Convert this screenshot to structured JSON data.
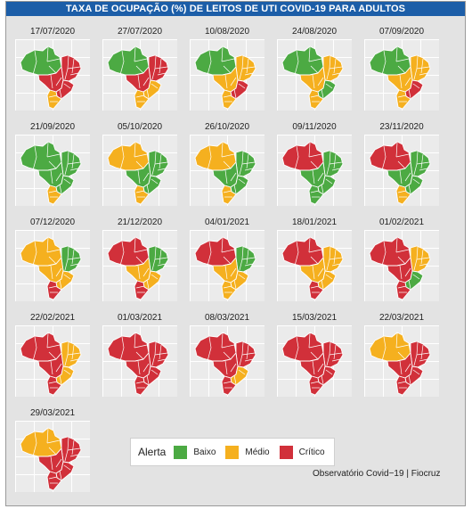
{
  "title": "TAXA DE OCUPAÇÃO (%) DE LEITOS DE UTI COVID-19 PARA ADULTOS",
  "colors": {
    "baixo": "#4caa43",
    "medio": "#f5b01f",
    "critico": "#d1303a"
  },
  "region_codes": [
    "N",
    "NE",
    "CO",
    "SE",
    "S"
  ],
  "maps": [
    {
      "date": "17/07/2020",
      "regions": [
        "baixo",
        "critico",
        "critico",
        "critico",
        "medio"
      ]
    },
    {
      "date": "27/07/2020",
      "regions": [
        "baixo",
        "critico",
        "critico",
        "medio",
        "medio"
      ]
    },
    {
      "date": "10/08/2020",
      "regions": [
        "baixo",
        "medio",
        "medio",
        "critico",
        "medio"
      ]
    },
    {
      "date": "24/08/2020",
      "regions": [
        "baixo",
        "medio",
        "medio",
        "baixo",
        "medio"
      ]
    },
    {
      "date": "07/09/2020",
      "regions": [
        "baixo",
        "medio",
        "medio",
        "critico",
        "medio"
      ]
    },
    {
      "date": "21/09/2020",
      "regions": [
        "baixo",
        "baixo",
        "baixo",
        "baixo",
        "medio"
      ]
    },
    {
      "date": "05/10/2020",
      "regions": [
        "medio",
        "baixo",
        "baixo",
        "baixo",
        "medio"
      ]
    },
    {
      "date": "26/10/2020",
      "regions": [
        "medio",
        "baixo",
        "baixo",
        "baixo",
        "medio"
      ]
    },
    {
      "date": "09/11/2020",
      "regions": [
        "critico",
        "baixo",
        "baixo",
        "baixo",
        "baixo"
      ]
    },
    {
      "date": "23/11/2020",
      "regions": [
        "critico",
        "baixo",
        "baixo",
        "baixo",
        "medio"
      ]
    },
    {
      "date": "07/12/2020",
      "regions": [
        "medio",
        "baixo",
        "medio",
        "medio",
        "critico"
      ]
    },
    {
      "date": "21/12/2020",
      "regions": [
        "critico",
        "baixo",
        "medio",
        "medio",
        "critico"
      ]
    },
    {
      "date": "04/01/2021",
      "regions": [
        "critico",
        "baixo",
        "medio",
        "medio",
        "medio"
      ]
    },
    {
      "date": "18/01/2021",
      "regions": [
        "critico",
        "medio",
        "medio",
        "medio",
        "critico"
      ]
    },
    {
      "date": "01/02/2021",
      "regions": [
        "critico",
        "medio",
        "critico",
        "baixo",
        "critico"
      ]
    },
    {
      "date": "22/02/2021",
      "regions": [
        "critico",
        "medio",
        "critico",
        "medio",
        "critico"
      ]
    },
    {
      "date": "01/03/2021",
      "regions": [
        "critico",
        "critico",
        "critico",
        "critico",
        "critico"
      ]
    },
    {
      "date": "08/03/2021",
      "regions": [
        "critico",
        "critico",
        "critico",
        "medio",
        "critico"
      ]
    },
    {
      "date": "15/03/2021",
      "regions": [
        "critico",
        "critico",
        "critico",
        "critico",
        "critico"
      ]
    },
    {
      "date": "22/03/2021",
      "regions": [
        "medio",
        "critico",
        "critico",
        "critico",
        "critico"
      ]
    },
    {
      "date": "29/03/2021",
      "regions": [
        "medio",
        "critico",
        "critico",
        "critico",
        "critico"
      ]
    }
  ],
  "legend": {
    "title": "Alerta",
    "items": [
      {
        "key": "baixo",
        "label": "Baixo"
      },
      {
        "key": "medio",
        "label": "Médio"
      },
      {
        "key": "critico",
        "label": "Crítico"
      }
    ]
  },
  "source": "Observatório Covid−19 | Fiocruz"
}
